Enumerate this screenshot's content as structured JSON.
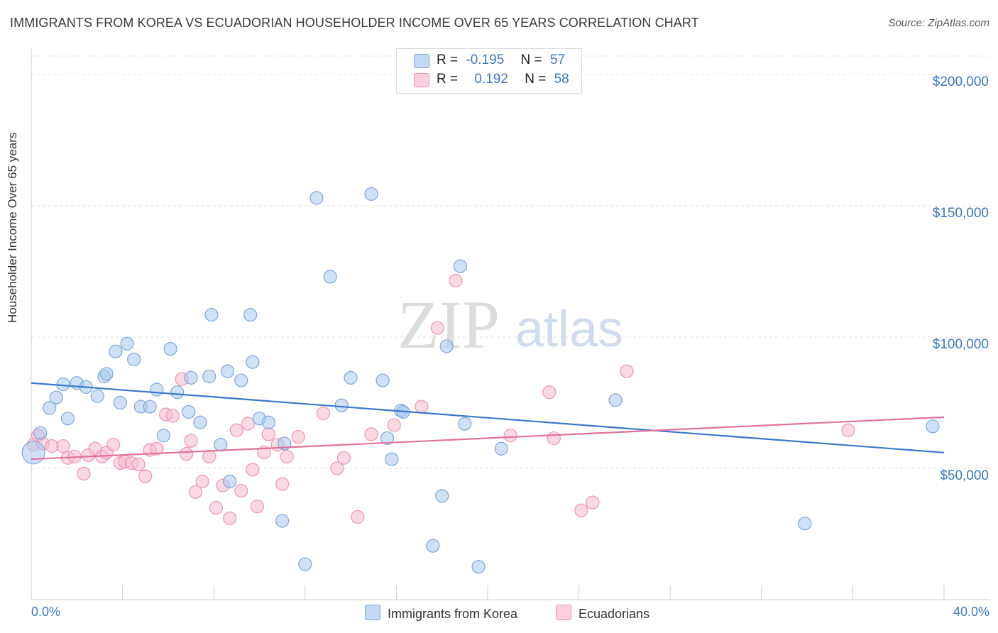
{
  "header": {
    "title": "IMMIGRANTS FROM KOREA VS ECUADORIAN HOUSEHOLDER INCOME OVER 65 YEARS CORRELATION CHART",
    "source": "Source: ZipAtlas.com"
  },
  "legend_top": {
    "rows": [
      {
        "r_label": "R =",
        "r_value": "-0.195",
        "n_label": "N =",
        "n_value": "57"
      },
      {
        "r_label": "R =",
        "r_value": "0.192",
        "n_label": "N =",
        "n_value": "58"
      }
    ]
  },
  "legend_bottom": {
    "korea": "Immigrants from Korea",
    "ecuador": "Ecuadorians"
  },
  "watermark": {
    "zip": "ZIP",
    "atlas": "atlas"
  },
  "colors": {
    "korea_fill": "#aac8ee",
    "korea_stroke": "#7aa6dc",
    "korea_line": "#3a78d0",
    "ecuador_fill": "#f6b9cc",
    "ecuador_stroke": "#ee93b0",
    "ecuador_line": "#e3729a",
    "tick_text": "#3b78c4"
  },
  "chart_data": {
    "type": "scatter",
    "title": "IMMIGRANTS FROM KOREA VS ECUADORIAN HOUSEHOLDER INCOME OVER 65 YEARS CORRELATION CHART",
    "xlabel": "",
    "ylabel": "Householder Income Over 65 years",
    "xlim": [
      0,
      40
    ],
    "ylim": [
      0,
      210000
    ],
    "x_tick_labels": [
      "0.0%",
      "40.0%"
    ],
    "y_ticks": [
      50000,
      100000,
      150000,
      200000
    ],
    "y_tick_labels": [
      "$50,000",
      "$100,000",
      "$150,000",
      "$200,000"
    ],
    "grid": true,
    "legend_placement": "top-center",
    "series": [
      {
        "name": "Immigrants from Korea",
        "trend": {
          "x": [
            0,
            40
          ],
          "y": [
            82500,
            56000
          ]
        },
        "points": [
          [
            0.1,
            56000
          ],
          [
            0.4,
            63500
          ],
          [
            0.8,
            73000
          ],
          [
            1.1,
            77000
          ],
          [
            1.4,
            82000
          ],
          [
            1.6,
            69000
          ],
          [
            2.0,
            82500
          ],
          [
            2.4,
            81000
          ],
          [
            2.9,
            77500
          ],
          [
            3.2,
            85000
          ],
          [
            3.3,
            86000
          ],
          [
            3.7,
            94500
          ],
          [
            3.9,
            75000
          ],
          [
            4.2,
            97500
          ],
          [
            4.5,
            91500
          ],
          [
            4.8,
            73500
          ],
          [
            5.2,
            73500
          ],
          [
            5.5,
            80000
          ],
          [
            5.8,
            62500
          ],
          [
            6.1,
            95500
          ],
          [
            6.4,
            79000
          ],
          [
            6.9,
            71500
          ],
          [
            7.0,
            84500
          ],
          [
            7.4,
            67500
          ],
          [
            7.8,
            85000
          ],
          [
            7.9,
            108500
          ],
          [
            8.3,
            59000
          ],
          [
            8.6,
            87000
          ],
          [
            8.7,
            45000
          ],
          [
            9.2,
            83500
          ],
          [
            9.6,
            108500
          ],
          [
            9.7,
            90500
          ],
          [
            10.0,
            69000
          ],
          [
            10.4,
            67500
          ],
          [
            11.0,
            30000
          ],
          [
            11.1,
            59500
          ],
          [
            12.0,
            13500
          ],
          [
            12.5,
            153000
          ],
          [
            13.1,
            123000
          ],
          [
            13.6,
            74000
          ],
          [
            14.0,
            84500
          ],
          [
            14.9,
            154500
          ],
          [
            15.4,
            83500
          ],
          [
            15.6,
            61500
          ],
          [
            15.8,
            53500
          ],
          [
            16.2,
            72000
          ],
          [
            16.3,
            71500
          ],
          [
            17.6,
            20500
          ],
          [
            18.0,
            39500
          ],
          [
            18.2,
            96500
          ],
          [
            18.8,
            127000
          ],
          [
            19.0,
            67000
          ],
          [
            19.6,
            12500
          ],
          [
            20.6,
            57500
          ],
          [
            25.6,
            76000
          ],
          [
            33.9,
            29000
          ],
          [
            39.5,
            66000
          ]
        ]
      },
      {
        "name": "Ecuadorians",
        "trend": {
          "x": [
            0,
            40
          ],
          "y": [
            53500,
            69500
          ]
        },
        "points": [
          [
            0.1,
            59000
          ],
          [
            0.3,
            62500
          ],
          [
            0.5,
            59500
          ],
          [
            0.9,
            58500
          ],
          [
            1.4,
            58500
          ],
          [
            1.6,
            54000
          ],
          [
            1.9,
            54500
          ],
          [
            2.3,
            48000
          ],
          [
            2.5,
            55000
          ],
          [
            2.8,
            57500
          ],
          [
            3.1,
            54500
          ],
          [
            3.3,
            56000
          ],
          [
            3.6,
            59000
          ],
          [
            3.9,
            52000
          ],
          [
            4.1,
            52500
          ],
          [
            4.4,
            52000
          ],
          [
            4.7,
            51500
          ],
          [
            5.0,
            47000
          ],
          [
            5.2,
            57000
          ],
          [
            5.5,
            57500
          ],
          [
            5.9,
            70500
          ],
          [
            6.2,
            70000
          ],
          [
            6.6,
            84000
          ],
          [
            6.8,
            55500
          ],
          [
            7.0,
            60500
          ],
          [
            7.2,
            41000
          ],
          [
            7.5,
            45000
          ],
          [
            7.8,
            54500
          ],
          [
            8.1,
            35000
          ],
          [
            8.4,
            43500
          ],
          [
            8.7,
            31000
          ],
          [
            9.0,
            64500
          ],
          [
            9.2,
            41500
          ],
          [
            9.5,
            67000
          ],
          [
            9.7,
            49500
          ],
          [
            9.9,
            35500
          ],
          [
            10.2,
            56000
          ],
          [
            10.4,
            63000
          ],
          [
            10.8,
            59000
          ],
          [
            11.0,
            44000
          ],
          [
            11.2,
            54500
          ],
          [
            11.7,
            62000
          ],
          [
            12.8,
            71000
          ],
          [
            13.4,
            50000
          ],
          [
            13.7,
            54000
          ],
          [
            14.3,
            31500
          ],
          [
            14.9,
            63000
          ],
          [
            15.9,
            66500
          ],
          [
            17.1,
            73500
          ],
          [
            17.8,
            103500
          ],
          [
            18.6,
            121500
          ],
          [
            21.0,
            62500
          ],
          [
            22.7,
            79000
          ],
          [
            22.9,
            61500
          ],
          [
            24.1,
            34000
          ],
          [
            24.6,
            37000
          ],
          [
            26.1,
            87000
          ],
          [
            35.8,
            64500
          ]
        ]
      }
    ]
  }
}
